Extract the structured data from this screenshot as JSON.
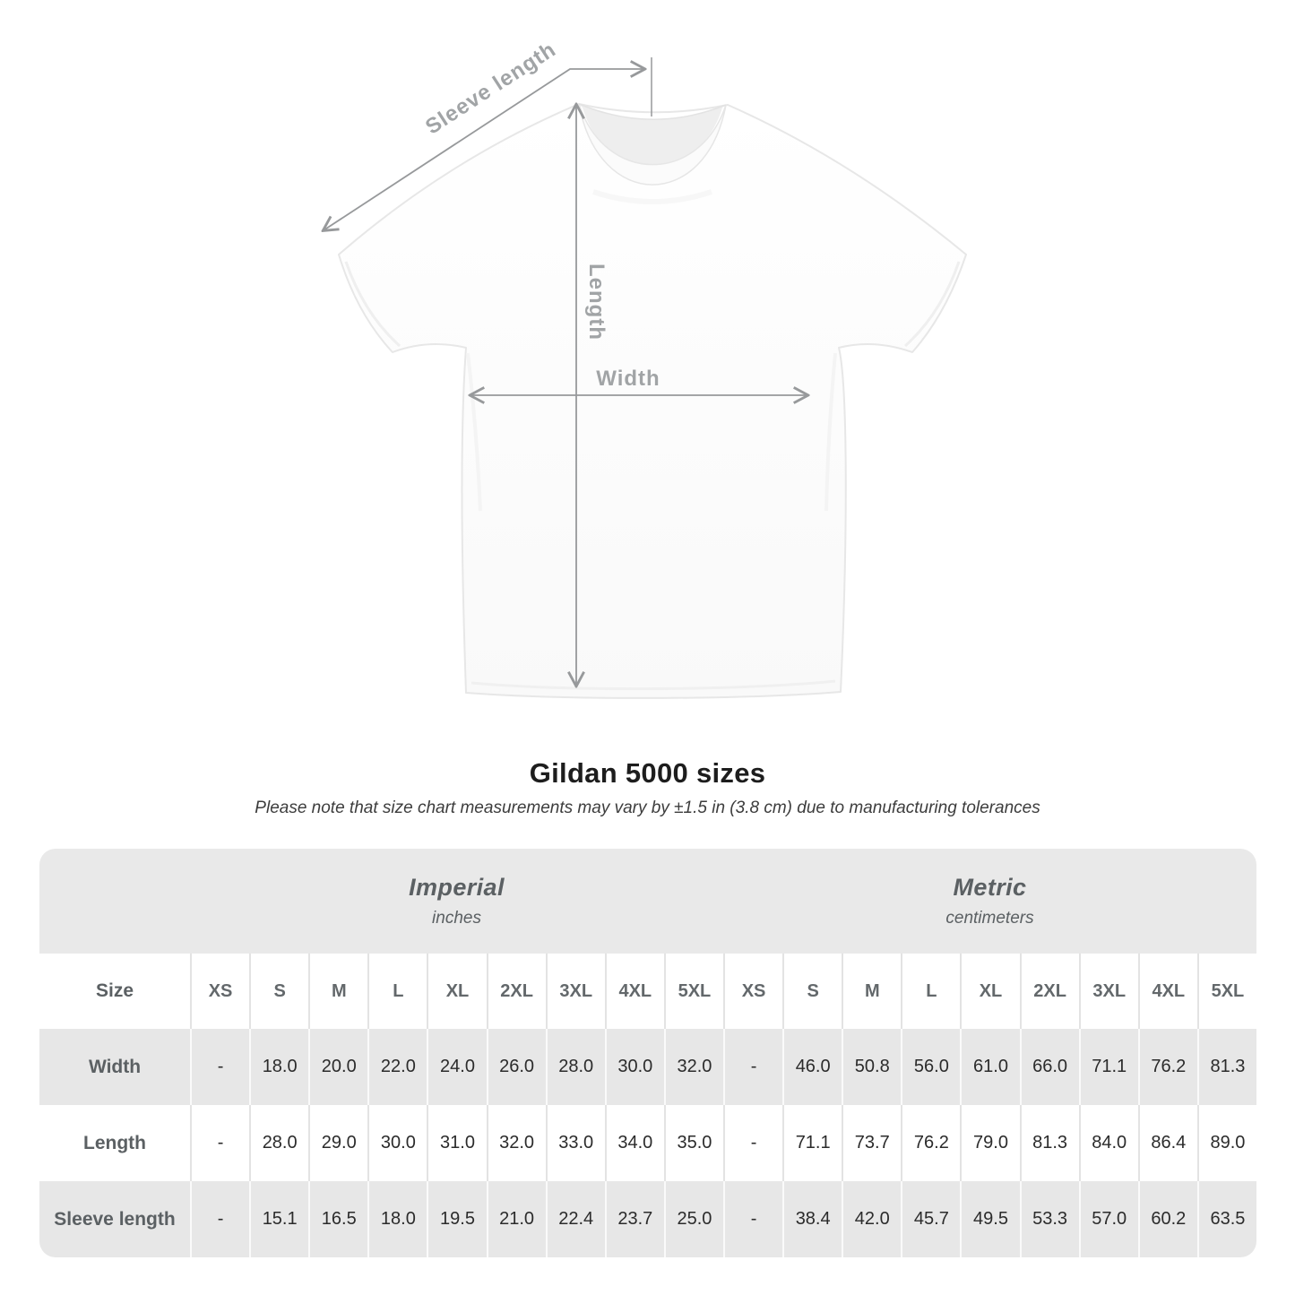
{
  "title": "Gildan 5000 sizes",
  "note": "Please note that size chart measurements may vary by ±1.5 in (3.8 cm) due to manufacturing tolerances",
  "diagram": {
    "sleeve_length_label": "Sleeve length",
    "length_label": "Length",
    "width_label": "Width",
    "arrow_color": "#97999b",
    "label_color": "#a1a4a6"
  },
  "size_table": {
    "corner_label": "Size",
    "groups": [
      {
        "label": "Imperial",
        "unit": "inches"
      },
      {
        "label": "Metric",
        "unit": "centimeters"
      }
    ],
    "sizes": [
      "XS",
      "S",
      "M",
      "L",
      "XL",
      "2XL",
      "3XL",
      "4XL",
      "5XL"
    ],
    "rows": [
      {
        "key": "width",
        "label": "Width",
        "imperial": [
          "-",
          "18.0",
          "20.0",
          "22.0",
          "24.0",
          "26.0",
          "28.0",
          "30.0",
          "32.0"
        ],
        "metric": [
          "-",
          "46.0",
          "50.8",
          "56.0",
          "61.0",
          "66.0",
          "71.1",
          "76.2",
          "81.3"
        ]
      },
      {
        "key": "length",
        "label": "Length",
        "imperial": [
          "-",
          "28.0",
          "29.0",
          "30.0",
          "31.0",
          "32.0",
          "33.0",
          "34.0",
          "35.0"
        ],
        "metric": [
          "-",
          "71.1",
          "73.7",
          "76.2",
          "79.0",
          "81.3",
          "84.0",
          "86.4",
          "89.0"
        ]
      },
      {
        "key": "sleeve-length",
        "label": "Sleeve length",
        "imperial": [
          "-",
          "15.1",
          "16.5",
          "18.0",
          "19.5",
          "21.0",
          "22.4",
          "23.7",
          "25.0"
        ],
        "metric": [
          "-",
          "38.4",
          "42.0",
          "45.7",
          "49.5",
          "53.3",
          "57.0",
          "60.2",
          "63.5"
        ]
      }
    ]
  },
  "chart_data": {
    "type": "table",
    "title": "Gildan 5000 sizes",
    "unit_groups": [
      "Imperial (inches)",
      "Metric (centimeters)"
    ],
    "columns": [
      "XS",
      "S",
      "M",
      "L",
      "XL",
      "2XL",
      "3XL",
      "4XL",
      "5XL"
    ],
    "rows": [
      {
        "label": "Width",
        "imperial": [
          null,
          18.0,
          20.0,
          22.0,
          24.0,
          26.0,
          28.0,
          30.0,
          32.0
        ],
        "metric": [
          null,
          46.0,
          50.8,
          56.0,
          61.0,
          66.0,
          71.1,
          76.2,
          81.3
        ]
      },
      {
        "label": "Length",
        "imperial": [
          null,
          28.0,
          29.0,
          30.0,
          31.0,
          32.0,
          33.0,
          34.0,
          35.0
        ],
        "metric": [
          null,
          71.1,
          73.7,
          76.2,
          79.0,
          81.3,
          84.0,
          86.4,
          89.0
        ]
      },
      {
        "label": "Sleeve length",
        "imperial": [
          null,
          15.1,
          16.5,
          18.0,
          19.5,
          21.0,
          22.4,
          23.7,
          25.0
        ],
        "metric": [
          null,
          38.4,
          42.0,
          45.7,
          49.5,
          53.3,
          57.0,
          60.2,
          63.5
        ]
      }
    ]
  }
}
